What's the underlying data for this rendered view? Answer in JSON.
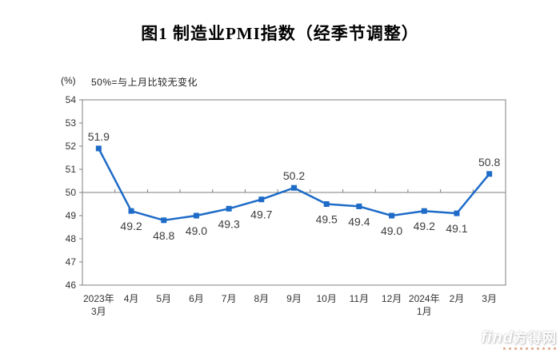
{
  "header": {
    "title": "图1  制造业PMI指数（经季节调整）"
  },
  "subtitle": {
    "unit": "(%)",
    "note": "50%=与上月比较无变化"
  },
  "chart_data": {
    "type": "line",
    "title": "图1  制造业PMI指数（经季节调整）",
    "unit_label": "(%)",
    "note": "50%=与上月比较无变化",
    "categories": [
      "2023年\n3月",
      "4月",
      "5月",
      "6月",
      "7月",
      "8月",
      "9月",
      "10月",
      "11月",
      "12月",
      "2024年\n1月",
      "2月",
      "3月"
    ],
    "values": [
      51.9,
      49.2,
      48.8,
      49.0,
      49.3,
      49.7,
      50.2,
      49.5,
      49.4,
      49.0,
      49.2,
      49.1,
      50.8
    ],
    "ylim": [
      46,
      54
    ],
    "ytick_step": 1,
    "reference_line": 50,
    "grid": "reference-line-only",
    "legend": "none",
    "line_color": "#1e6bc8",
    "axis_color": "#7f7f7f",
    "label_color": "#3c3c3c",
    "tick_label_color": "#333333",
    "marker": "square"
  },
  "watermark": {
    "latin": "find",
    "cjk": "方得网"
  }
}
